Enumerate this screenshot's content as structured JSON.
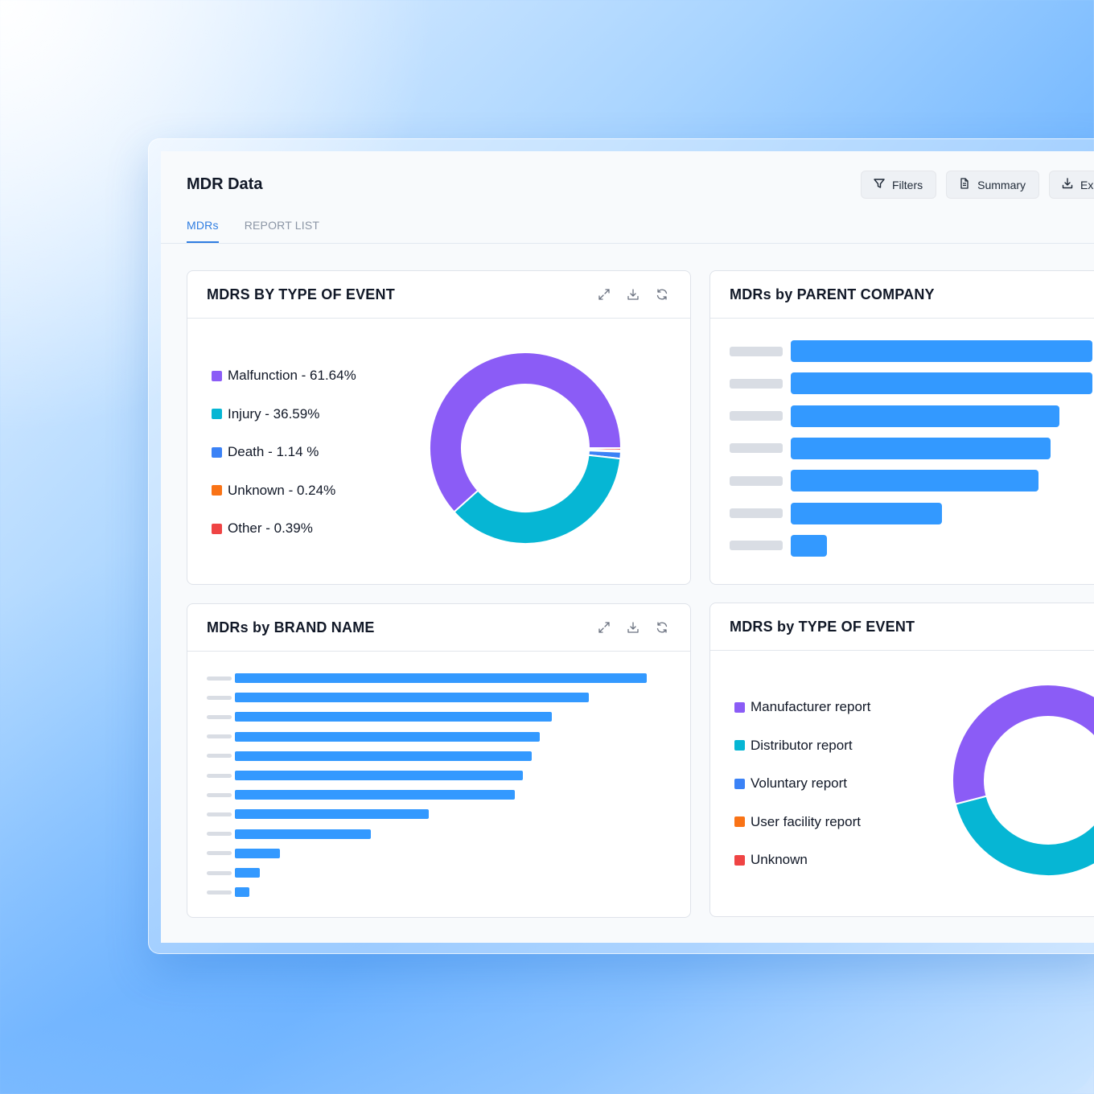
{
  "app": {
    "title": "MDR Data",
    "toolbar": [
      {
        "label": "Filters",
        "icon": "filter-icon"
      },
      {
        "label": "Summary",
        "icon": "document-icon"
      },
      {
        "label": "Exp",
        "icon": "download-icon"
      }
    ],
    "tabs": [
      {
        "label": "MDRs",
        "active": true
      },
      {
        "label": "REPORT LIST",
        "active": false
      }
    ]
  },
  "colors": {
    "purple": "#8b5cf6",
    "cyan": "#06b6d4",
    "blue": "#3b82f6",
    "orange": "#f97316",
    "red": "#ef4444",
    "bar": "#3399ff",
    "accent": "#2f7de1"
  },
  "cards": {
    "event_type": {
      "title": "MDRS BY TYPE OF EVENT",
      "legend": [
        {
          "label": "Malfunction - 61.64%",
          "color": "#8b5cf6"
        },
        {
          "label": "Injury - 36.59%",
          "color": "#06b6d4"
        },
        {
          "label": "Death - 1.14 %",
          "color": "#3b82f6"
        },
        {
          "label": "Unknown - 0.24%",
          "color": "#f97316"
        },
        {
          "label": "Other - 0.39%",
          "color": "#ef4444"
        }
      ]
    },
    "parent_company": {
      "title": "MDRs by PARENT COMPANY"
    },
    "brand_name": {
      "title": "MDRs by BRAND NAME"
    },
    "report_source": {
      "title": "MDRS by TYPE OF EVENT",
      "legend": [
        {
          "label": "Manufacturer report",
          "color": "#8b5cf6"
        },
        {
          "label": "Distributor report",
          "color": "#06b6d4"
        },
        {
          "label": "Voluntary report",
          "color": "#3b82f6"
        },
        {
          "label": "User facility report",
          "color": "#f97316"
        },
        {
          "label": "Unknown",
          "color": "#ef4444"
        }
      ]
    }
  },
  "chart_data": [
    {
      "type": "pie",
      "categories": [
        "Malfunction",
        "Injury",
        "Death",
        "Unknown",
        "Other"
      ],
      "values": [
        61.64,
        36.59,
        1.14,
        0.24,
        0.39
      ],
      "colors": [
        "#8b5cf6",
        "#06b6d4",
        "#3b82f6",
        "#f97316",
        "#ef4444"
      ],
      "donut": true
    },
    {
      "type": "bar",
      "orientation": "horizontal",
      "values": [
        100,
        100,
        89,
        86,
        82,
        50,
        12
      ]
    },
    {
      "type": "bar",
      "orientation": "horizontal",
      "values": [
        100,
        86,
        77,
        74,
        72,
        70,
        68,
        47,
        33,
        11,
        6,
        3.5
      ]
    },
    {
      "type": "pie",
      "categories": [
        "Manufacturer report",
        "Distributor report",
        "Voluntary report",
        "User facility report",
        "Unknown"
      ],
      "values": [
        63,
        37,
        0,
        0,
        0
      ],
      "colors": [
        "#8b5cf6",
        "#06b6d4",
        "#3b82f6",
        "#f97316",
        "#ef4444"
      ],
      "donut": true
    }
  ]
}
